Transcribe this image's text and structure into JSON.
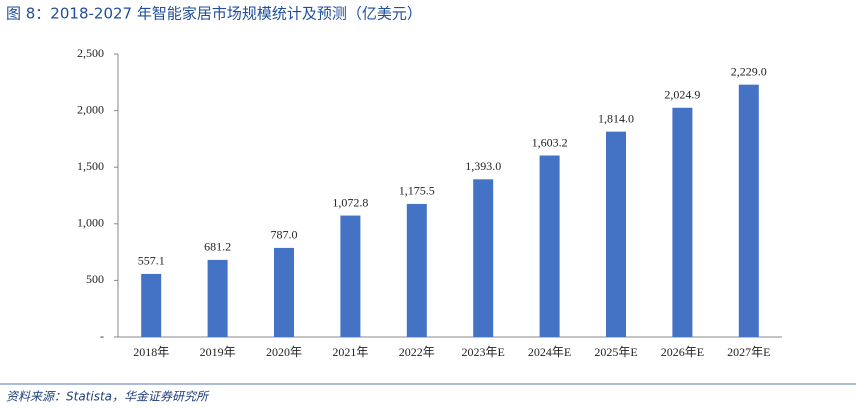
{
  "chart_data": {
    "type": "bar",
    "title": "图 8：2018-2027 年智能家居市场规模统计及预测（亿美元）",
    "source": "资料来源：Statista，华金证券研究所",
    "categories": [
      "2018年",
      "2019年",
      "2020年",
      "2021年",
      "2022年",
      "2023年E",
      "2024年E",
      "2025年E",
      "2026年E",
      "2027年E"
    ],
    "values": [
      557.1,
      681.2,
      787.0,
      1072.8,
      1175.5,
      1393.0,
      1603.2,
      1814.0,
      2024.9,
      2229.0
    ],
    "value_labels": [
      "557.1",
      "681.2",
      "787.0",
      "1,072.8",
      "1,175.5",
      "1,393.0",
      "1,603.2",
      "1,814.0",
      "2,024.9",
      "2,229.0"
    ],
    "color": "#4472c4",
    "ylim": [
      0,
      2500
    ],
    "yticks": [
      {
        "value": 0,
        "label": "-"
      },
      500,
      {
        "value": 1000,
        "label": "1,000"
      },
      {
        "value": 1500,
        "label": "1,500"
      },
      {
        "value": 2000,
        "label": "2,000"
      },
      {
        "value": 2500,
        "label": "2,500"
      }
    ],
    "grid": false
  }
}
